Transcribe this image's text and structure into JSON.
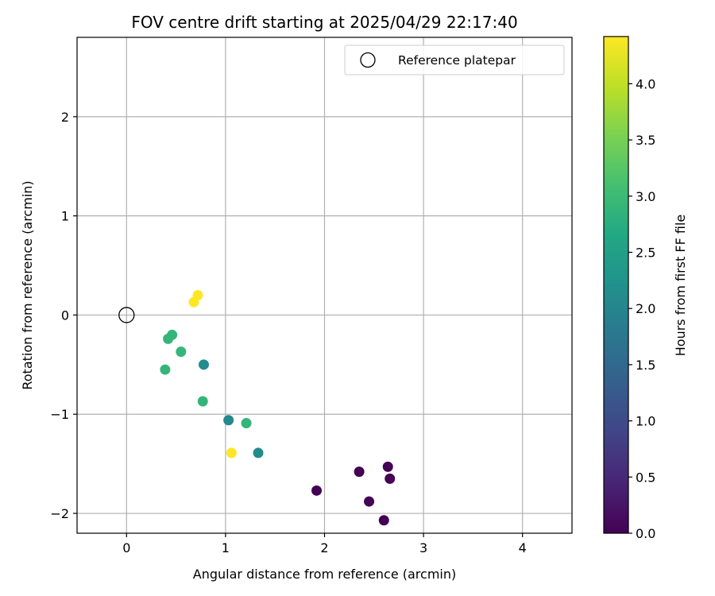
{
  "chart_data": {
    "type": "scatter",
    "title": "FOV centre drift starting at 2025/04/29 22:17:40",
    "xlabel": "Angular distance from reference (arcmin)",
    "ylabel": "Rotation from reference (arcmin)",
    "xlim": [
      -0.5,
      4.5
    ],
    "ylim": [
      -2.2,
      2.8
    ],
    "xticks": [
      0,
      1,
      2,
      3,
      4
    ],
    "yticks": [
      -2,
      -1,
      0,
      1,
      2
    ],
    "xtick_labels": [
      "0",
      "1",
      "2",
      "3",
      "4"
    ],
    "ytick_labels": [
      "−2",
      "−1",
      "0",
      "1",
      "2"
    ],
    "grid": true,
    "legend": {
      "placement": "top-right",
      "entries": [
        {
          "label": "Reference platepar",
          "marker": "open-circle"
        }
      ]
    },
    "reference_point": {
      "x": 0,
      "y": 0
    },
    "colorbar": {
      "label": "Hours from first FF file",
      "colormap": "viridis",
      "range": [
        0,
        4.42
      ],
      "ticks": [
        0.0,
        0.5,
        1.0,
        1.5,
        2.0,
        2.5,
        3.0,
        3.5,
        4.0
      ],
      "tick_labels": [
        "0.0",
        "0.5",
        "1.0",
        "1.5",
        "2.0",
        "2.5",
        "3.0",
        "3.5",
        "4.0"
      ]
    },
    "points": [
      {
        "x": 1.92,
        "y": -1.77,
        "hours": 0.0
      },
      {
        "x": 2.35,
        "y": -1.58,
        "hours": 0.0
      },
      {
        "x": 2.45,
        "y": -1.88,
        "hours": 0.02
      },
      {
        "x": 2.6,
        "y": -2.07,
        "hours": 0.0
      },
      {
        "x": 2.64,
        "y": -1.53,
        "hours": 0.0
      },
      {
        "x": 2.66,
        "y": -1.65,
        "hours": 0.02
      },
      {
        "x": 1.33,
        "y": -1.39,
        "hours": 2.1
      },
      {
        "x": 1.03,
        "y": -1.06,
        "hours": 2.05
      },
      {
        "x": 0.78,
        "y": -0.5,
        "hours": 2.1
      },
      {
        "x": 1.21,
        "y": -1.09,
        "hours": 2.9
      },
      {
        "x": 0.77,
        "y": -0.87,
        "hours": 2.9
      },
      {
        "x": 0.55,
        "y": -0.37,
        "hours": 2.9
      },
      {
        "x": 0.39,
        "y": -0.55,
        "hours": 2.9
      },
      {
        "x": 0.42,
        "y": -0.24,
        "hours": 2.9
      },
      {
        "x": 0.46,
        "y": -0.2,
        "hours": 2.9
      },
      {
        "x": 0.68,
        "y": 0.13,
        "hours": 4.42
      },
      {
        "x": 0.72,
        "y": 0.2,
        "hours": 4.42
      },
      {
        "x": 1.06,
        "y": -1.39,
        "hours": 4.42
      }
    ]
  }
}
